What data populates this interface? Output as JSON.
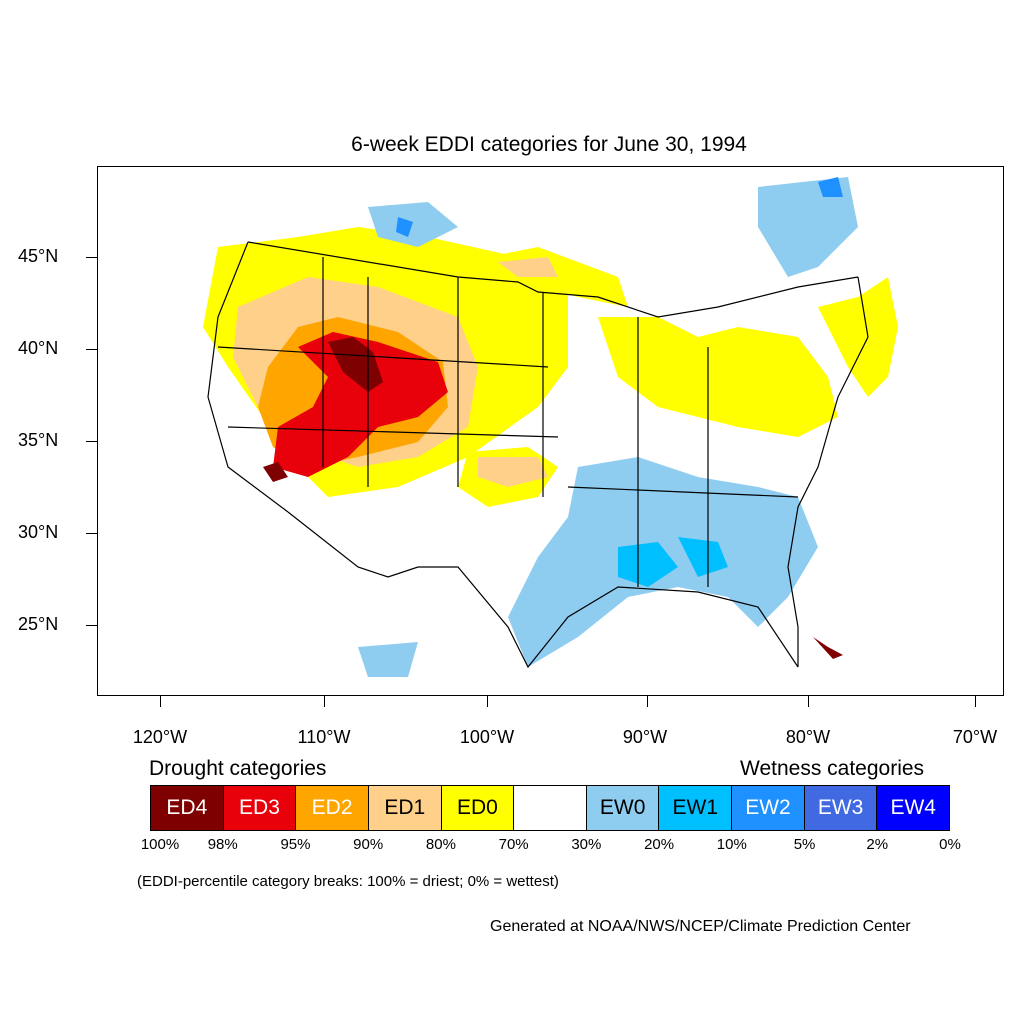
{
  "title": "6-week EDDI categories for June 30, 1994",
  "lat_labels": [
    "45°N",
    "40°N",
    "35°N",
    "30°N",
    "25°N"
  ],
  "lon_labels": [
    "120°W",
    "110°W",
    "100°W",
    "90°W",
    "80°W",
    "70°W"
  ],
  "drought_title": "Drought categories",
  "wetness_title": "Wetness categories",
  "legend": [
    {
      "label": "ED4",
      "color": "#7f0000",
      "text_color": "#ffffff"
    },
    {
      "label": "ED3",
      "color": "#e8000b",
      "text_color": "#ffffff"
    },
    {
      "label": "ED2",
      "color": "#ffa500",
      "text_color": "#ffffff"
    },
    {
      "label": "ED1",
      "color": "#ffd08a",
      "text_color": "#000000"
    },
    {
      "label": "ED0",
      "color": "#ffff00",
      "text_color": "#000000"
    },
    {
      "label": "",
      "color": "#ffffff",
      "text_color": "#000000"
    },
    {
      "label": "EW0",
      "color": "#8fcdf0",
      "text_color": "#000000"
    },
    {
      "label": "EW1",
      "color": "#00bfff",
      "text_color": "#000000"
    },
    {
      "label": "EW2",
      "color": "#1e90ff",
      "text_color": "#ffffff"
    },
    {
      "label": "EW3",
      "color": "#4169e1",
      "text_color": "#ffffff"
    },
    {
      "label": "EW4",
      "color": "#0000ff",
      "text_color": "#ffffff"
    }
  ],
  "percentiles": [
    "100%",
    "98%",
    "95%",
    "90%",
    "80%",
    "70%",
    "30%",
    "20%",
    "10%",
    "5%",
    "2%",
    "0%"
  ],
  "note": "(EDDI-percentile category breaks: 100% = driest; 0% = wettest)",
  "credit": "Generated at NOAA/NWS/NCEP/Climate Prediction Center"
}
